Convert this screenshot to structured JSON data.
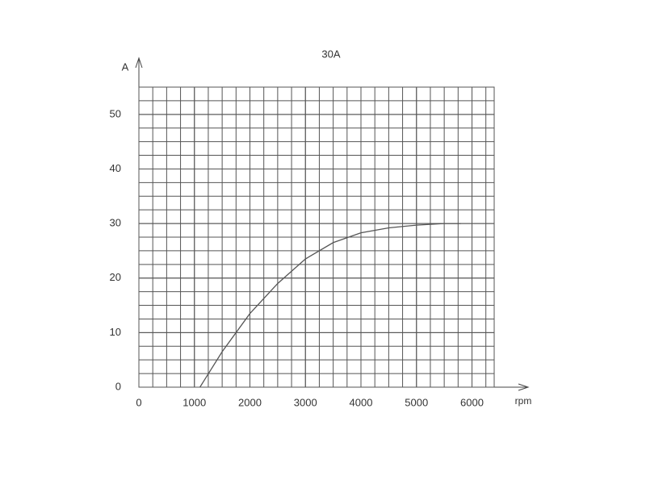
{
  "chart_data": {
    "type": "line",
    "title": "30A",
    "x_label": "rpm",
    "y_label": "A",
    "x": [
      1100,
      1500,
      2000,
      2500,
      3000,
      3500,
      4000,
      4500,
      5000,
      5500,
      5800
    ],
    "series": [
      {
        "name": "30A",
        "color": "#555555",
        "values": [
          0,
          6.5,
          13.5,
          19,
          23.5,
          26.5,
          28.3,
          29.2,
          29.7,
          30,
          30
        ]
      }
    ],
    "xlim": [
      0,
      6400
    ],
    "xticks": [
      0,
      1000,
      2000,
      3000,
      4000,
      5000,
      6000
    ],
    "ylim": [
      0,
      55
    ],
    "yticks": [
      0,
      10,
      20,
      30,
      40,
      50
    ],
    "grid": true
  }
}
